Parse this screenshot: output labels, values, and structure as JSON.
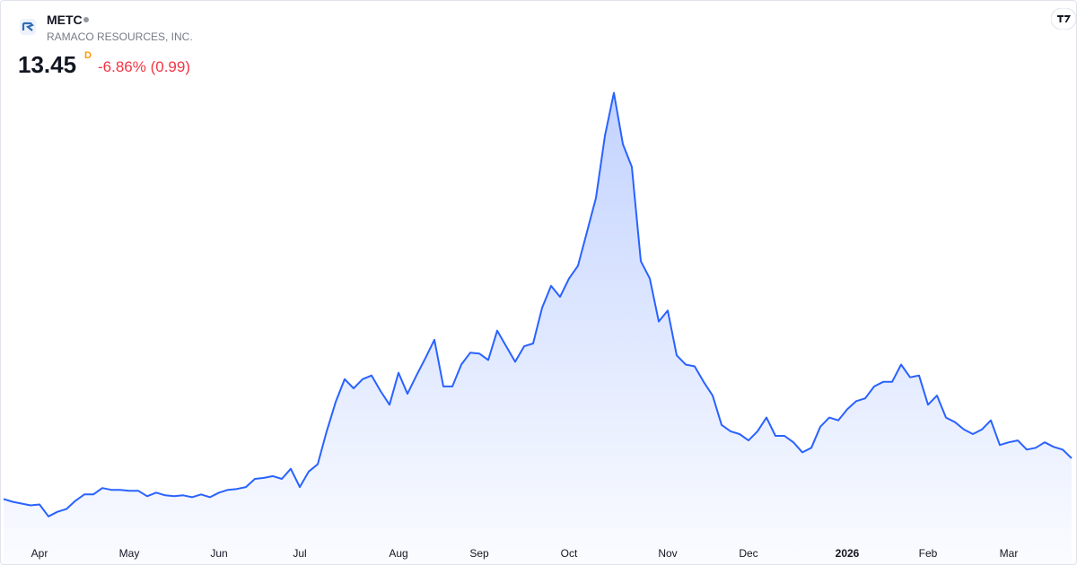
{
  "header": {
    "symbol": "METC",
    "name": "RAMACO RESOURCES, INC.",
    "price": 13.45,
    "interval": "D",
    "change": "-6.86% (0.99)"
  },
  "chart_data": {
    "type": "area",
    "color": "#2962ff",
    "categories": [
      null,
      null,
      null,
      null,
      "Apr",
      null,
      null,
      null,
      null,
      null,
      null,
      null,
      null,
      null,
      "May",
      null,
      null,
      null,
      null,
      null,
      null,
      null,
      null,
      null,
      "Jun",
      null,
      null,
      null,
      null,
      null,
      null,
      null,
      null,
      "Jul",
      null,
      null,
      null,
      null,
      null,
      null,
      null,
      null,
      null,
      null,
      "Aug",
      null,
      null,
      null,
      null,
      null,
      null,
      null,
      null,
      "Sep",
      null,
      null,
      null,
      null,
      null,
      null,
      null,
      null,
      null,
      "Oct",
      null,
      null,
      null,
      null,
      null,
      null,
      null,
      null,
      null,
      null,
      "Nov",
      null,
      null,
      null,
      null,
      null,
      null,
      null,
      null,
      "Dec",
      null,
      null,
      null,
      null,
      null,
      null,
      null,
      null,
      null,
      null,
      "2026",
      null,
      null,
      null,
      null,
      null,
      null,
      null,
      null,
      "Feb",
      null,
      null,
      null,
      null,
      null,
      null,
      null,
      null,
      "Mar",
      null,
      null,
      null,
      null,
      null,
      null,
      null
    ],
    "values": [
      9.0,
      8.7,
      8.5,
      8.3,
      8.4,
      7.1,
      7.6,
      7.9,
      8.8,
      9.5,
      9.5,
      10.2,
      10.0,
      10.0,
      9.9,
      9.9,
      9.3,
      9.7,
      9.4,
      9.3,
      9.4,
      9.2,
      9.5,
      9.2,
      9.7,
      10.0,
      10.1,
      10.3,
      11.2,
      11.3,
      11.5,
      11.2,
      12.3,
      10.3,
      12.0,
      12.8,
      16.4,
      19.6,
      22.1,
      21.1,
      22.1,
      22.5,
      20.8,
      19.3,
      22.8,
      20.5,
      22.5,
      24.4,
      26.4,
      21.3,
      21.3,
      23.7,
      25.0,
      24.9,
      24.2,
      27.4,
      25.7,
      24.0,
      25.7,
      26.0,
      29.9,
      32.3,
      31.1,
      33.1,
      34.5,
      38.2,
      41.9,
      48.7,
      53.4,
      47.8,
      45.3,
      35.0,
      33.1,
      28.4,
      29.6,
      24.7,
      23.7,
      23.5,
      21.8,
      20.3,
      17.1,
      16.4,
      16.1,
      15.4,
      16.4,
      17.9,
      15.9,
      15.9,
      15.2,
      14.1,
      14.6,
      16.9,
      17.9,
      17.6,
      18.8,
      19.7,
      20.0,
      21.3,
      21.8,
      21.8,
      23.7,
      22.3,
      22.5,
      19.3,
      20.3,
      17.9,
      17.4,
      16.6,
      16.1,
      16.6,
      17.6,
      14.9,
      15.2,
      15.4,
      14.4,
      14.6,
      15.2,
      14.7,
      14.4,
      13.45
    ],
    "ylim": [
      4,
      58
    ]
  }
}
